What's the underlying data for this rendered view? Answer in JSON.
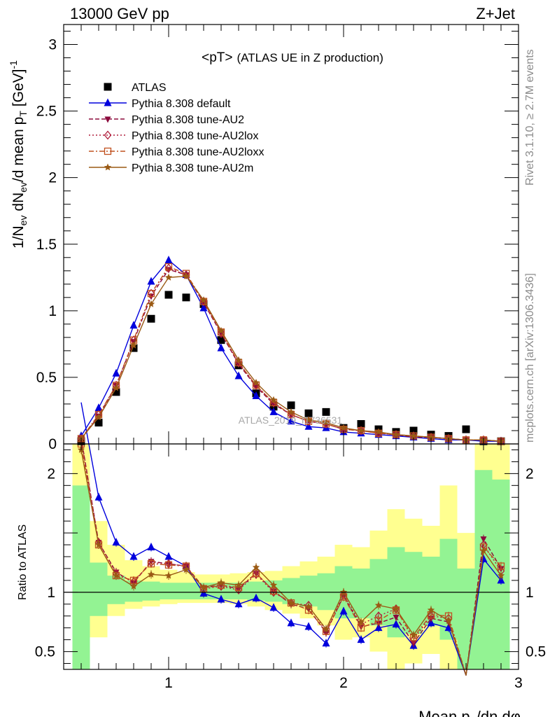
{
  "header": {
    "energy_label": "13000 GeV pp",
    "process_label": "Z+Jet"
  },
  "side_labels": {
    "rivet": "Rivet 3.1.10, ≥ 2.7M events",
    "mcplots": "mcplots.cern.ch [arXiv:1306.3436]"
  },
  "watermark": "ATLAS_2019_I1736531",
  "colors": {
    "atlas": "#000000",
    "default": "#0000dd",
    "au2": "#8b0a3c",
    "au2lox": "#b01e3c",
    "au2loxx": "#c0501e",
    "au2m": "#9a5a14",
    "band_green": "#93f393",
    "band_yellow": "#ffff90"
  },
  "chart_data": [
    {
      "type": "scatter",
      "panel": "main",
      "title": "<pT>",
      "subtitle": "(ATLAS UE in Z production)",
      "ylabel": "1/N_ev dN_ev/d mean p_T [GeV]^-1",
      "xlabel": "",
      "xlim": [
        0.4,
        3.0
      ],
      "ylim": [
        0,
        3.15
      ],
      "yticks": [
        0,
        0.5,
        1,
        1.5,
        2,
        2.5,
        3
      ],
      "ytick_labels": [
        "0",
        "0.5",
        "1",
        "1.5",
        "2",
        "2.5",
        "3"
      ],
      "x": [
        0.5,
        0.6,
        0.7,
        0.8,
        0.9,
        1.0,
        1.1,
        1.2,
        1.3,
        1.4,
        1.5,
        1.6,
        1.7,
        1.8,
        1.9,
        2.0,
        2.1,
        2.2,
        2.3,
        2.4,
        2.5,
        2.6,
        2.7,
        2.8,
        2.9
      ],
      "series": [
        {
          "key": "atlas",
          "name": "ATLAS",
          "marker": "square",
          "line": "none",
          "values": [
            0.02,
            0.16,
            0.39,
            0.72,
            0.94,
            1.12,
            1.1,
            1.05,
            0.78,
            0.59,
            0.38,
            0.28,
            0.29,
            0.23,
            0.24,
            0.12,
            0.15,
            0.11,
            0.09,
            0.1,
            0.07,
            0.06,
            0.11,
            0.02,
            0.02
          ]
        },
        {
          "key": "default",
          "name": "Pythia 8.308 default",
          "marker": "triangle-up",
          "line": "solid",
          "values": [
            0.06,
            0.27,
            0.53,
            0.89,
            1.22,
            1.38,
            1.27,
            1.02,
            0.72,
            0.51,
            0.36,
            0.24,
            0.17,
            0.13,
            0.12,
            0.09,
            0.08,
            0.07,
            0.06,
            0.05,
            0.04,
            0.03,
            0.03,
            0.02,
            0.02
          ]
        },
        {
          "key": "au2",
          "name": "Pythia 8.308 tune-AU2",
          "marker": "triangle-down",
          "line": "dashed",
          "values": [
            0.04,
            0.21,
            0.44,
            0.77,
            1.11,
            1.31,
            1.27,
            1.06,
            0.83,
            0.6,
            0.43,
            0.3,
            0.22,
            0.17,
            0.15,
            0.11,
            0.1,
            0.08,
            0.07,
            0.05,
            0.05,
            0.04,
            0.03,
            0.03,
            0.02
          ]
        },
        {
          "key": "au2lox",
          "name": "Pythia 8.308 tune-AU2lox",
          "marker": "diamond-open",
          "line": "dotted",
          "values": [
            0.04,
            0.22,
            0.44,
            0.78,
            1.13,
            1.32,
            1.27,
            1.07,
            0.83,
            0.61,
            0.44,
            0.31,
            0.22,
            0.17,
            0.15,
            0.11,
            0.1,
            0.08,
            0.07,
            0.06,
            0.05,
            0.04,
            0.03,
            0.03,
            0.02
          ]
        },
        {
          "key": "au2loxx",
          "name": "Pythia 8.308 tune-AU2loxx",
          "marker": "square-open",
          "line": "dashdot",
          "values": [
            0.04,
            0.22,
            0.44,
            0.78,
            1.13,
            1.33,
            1.28,
            1.07,
            0.84,
            0.61,
            0.44,
            0.31,
            0.22,
            0.17,
            0.15,
            0.11,
            0.1,
            0.08,
            0.07,
            0.06,
            0.05,
            0.04,
            0.03,
            0.03,
            0.02
          ]
        },
        {
          "key": "au2m",
          "name": "Pythia 8.308 tune-AU2m",
          "marker": "star",
          "line": "solid",
          "values": [
            0.04,
            0.2,
            0.42,
            0.74,
            1.05,
            1.25,
            1.26,
            1.08,
            0.85,
            0.63,
            0.46,
            0.33,
            0.24,
            0.18,
            0.16,
            0.12,
            0.1,
            0.09,
            0.07,
            0.06,
            0.05,
            0.04,
            0.03,
            0.03,
            0.02
          ]
        }
      ]
    },
    {
      "type": "line",
      "panel": "ratio",
      "ylabel": "Ratio to ATLAS",
      "xlabel": "Mean p_T/dη dφ",
      "xlim": [
        0.4,
        3.0
      ],
      "ylim": [
        0.35,
        2.25
      ],
      "reference_line": 1,
      "xticks": [
        1,
        2,
        3
      ],
      "xtick_labels": [
        "1",
        "2",
        "3"
      ],
      "yticks": [
        0.5,
        1,
        2
      ],
      "ytick_labels": [
        "0.5",
        "1",
        "2"
      ],
      "x": [
        0.5,
        0.6,
        0.7,
        0.8,
        0.9,
        1.0,
        1.1,
        1.2,
        1.3,
        1.4,
        1.5,
        1.6,
        1.7,
        1.8,
        1.9,
        2.0,
        2.1,
        2.2,
        2.3,
        2.4,
        2.5,
        2.6,
        2.7,
        2.8,
        2.9
      ],
      "bands": {
        "yellow": {
          "low": [
            0.35,
            0.62,
            0.8,
            0.86,
            0.88,
            0.9,
            0.91,
            0.91,
            0.91,
            0.9,
            0.88,
            0.85,
            0.82,
            0.78,
            0.72,
            0.6,
            0.62,
            0.5,
            0.35,
            0.4,
            0.48,
            0.35,
            0.35,
            0.35,
            0.35
          ],
          "high": [
            2.25,
            1.6,
            1.4,
            1.27,
            1.22,
            1.19,
            1.17,
            1.15,
            1.15,
            1.16,
            1.17,
            1.18,
            1.22,
            1.26,
            1.3,
            1.4,
            1.38,
            1.52,
            1.7,
            1.62,
            1.56,
            1.9,
            1.5,
            2.25,
            2.25
          ]
        },
        "green": {
          "low": [
            0.35,
            0.8,
            0.9,
            0.92,
            0.93,
            0.94,
            0.94,
            0.94,
            0.94,
            0.94,
            0.93,
            0.92,
            0.9,
            0.88,
            0.85,
            0.78,
            0.78,
            0.72,
            0.62,
            0.65,
            0.72,
            0.6,
            0.35,
            0.35,
            0.35
          ],
          "high": [
            1.9,
            1.25,
            1.14,
            1.1,
            1.09,
            1.08,
            1.08,
            1.08,
            1.08,
            1.08,
            1.09,
            1.1,
            1.12,
            1.14,
            1.16,
            1.22,
            1.2,
            1.28,
            1.38,
            1.34,
            1.3,
            1.45,
            1.2,
            2.03,
            1.95
          ]
        }
      },
      "series": [
        {
          "key": "default",
          "name": "Pythia 8.308 default",
          "values": [
            2.6,
            1.8,
            1.42,
            1.3,
            1.38,
            1.3,
            1.22,
            0.99,
            0.94,
            0.9,
            0.95,
            0.87,
            0.74,
            0.71,
            0.57,
            0.84,
            0.6,
            0.7,
            0.73,
            0.55,
            0.74,
            0.7,
            0.3,
            1.28,
            1.1
          ]
        },
        {
          "key": "au2",
          "name": "Pythia 8.308 tune-AU2",
          "values": [
            2.3,
            1.42,
            1.17,
            1.08,
            1.26,
            1.24,
            1.22,
            1.04,
            1.06,
            1.03,
            1.16,
            1.01,
            0.9,
            0.86,
            0.66,
            0.97,
            0.71,
            0.74,
            0.79,
            0.57,
            0.78,
            0.75,
            0.3,
            1.45,
            1.2
          ]
        },
        {
          "key": "au2lox",
          "name": "Pythia 8.308 tune-AU2lox",
          "values": [
            2.3,
            1.42,
            1.16,
            1.09,
            1.25,
            1.24,
            1.22,
            1.03,
            1.05,
            1.02,
            1.15,
            1.0,
            0.91,
            0.89,
            0.67,
            0.98,
            0.73,
            0.8,
            0.86,
            0.6,
            0.8,
            0.78,
            0.3,
            1.4,
            1.18
          ]
        },
        {
          "key": "au2loxx",
          "name": "Pythia 8.308 tune-AU2loxx",
          "values": [
            2.25,
            1.4,
            1.14,
            1.1,
            1.24,
            1.23,
            1.22,
            1.03,
            1.06,
            1.04,
            1.16,
            1.01,
            0.91,
            0.85,
            0.67,
            0.96,
            0.7,
            0.76,
            0.85,
            0.62,
            0.81,
            0.8,
            0.3,
            1.38,
            1.22
          ]
        },
        {
          "key": "au2m",
          "name": "Pythia 8.308 tune-AU2m",
          "values": [
            2.2,
            1.4,
            1.14,
            1.05,
            1.15,
            1.14,
            1.19,
            1.04,
            1.08,
            1.06,
            1.21,
            1.06,
            0.91,
            0.88,
            0.69,
            1.0,
            0.75,
            0.89,
            0.86,
            0.64,
            0.85,
            0.76,
            0.3,
            1.35,
            1.14
          ]
        }
      ]
    }
  ]
}
